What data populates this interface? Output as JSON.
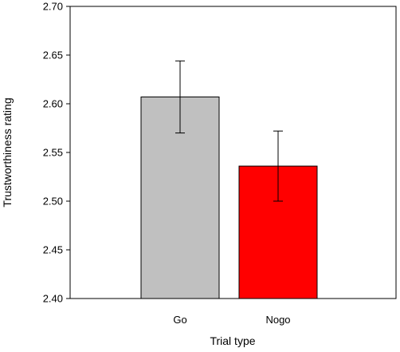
{
  "chart_data": {
    "type": "bar",
    "title": "",
    "xlabel": "Trial type",
    "ylabel": "Trustworthiness rating",
    "categories": [
      "Go",
      "Nogo"
    ],
    "values": [
      2.607,
      2.536
    ],
    "error": [
      0.037,
      0.036
    ],
    "colors": [
      "#c0c0c0",
      "#ff0000"
    ],
    "ylim": [
      2.4,
      2.7
    ],
    "yticks": [
      "2.40",
      "2.45",
      "2.50",
      "2.55",
      "2.60",
      "2.65",
      "2.70"
    ],
    "grid": false,
    "legend": "none"
  }
}
